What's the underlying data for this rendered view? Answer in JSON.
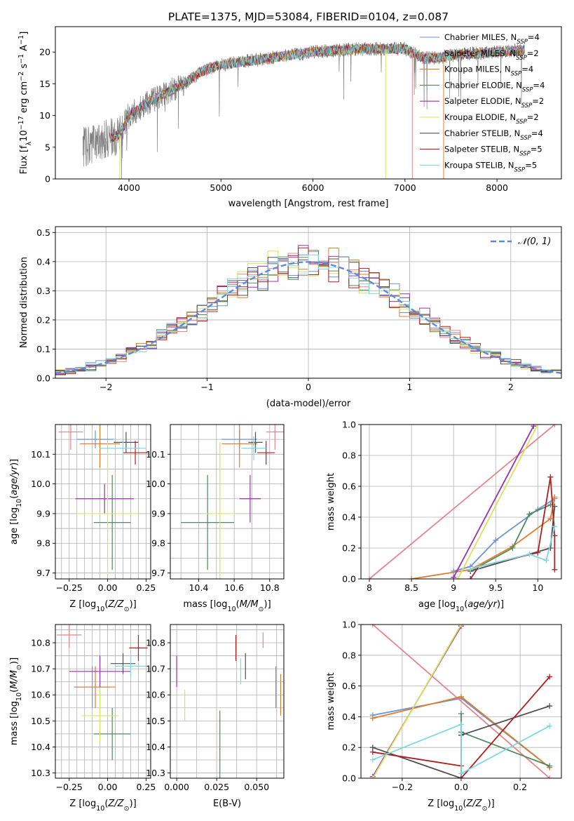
{
  "figure": {
    "title": "PLATE=1375, MJD=53084, FIBERID=0104, z=0.087"
  },
  "models": [
    {
      "name": "Chabrier MILES",
      "nssp": "4",
      "color": "#6a93d8"
    },
    {
      "name": "Salpeter MILES",
      "nssp": "2",
      "color": "#e8838b"
    },
    {
      "name": "Kroupa MILES",
      "nssp": "4",
      "color": "#e17c2a"
    },
    {
      "name": "Chabrier ELODIE",
      "nssp": "4",
      "color": "#4f8a5e"
    },
    {
      "name": "Salpeter ELODIE",
      "nssp": "2",
      "color": "#9c2fb0"
    },
    {
      "name": "Kroupa ELODIE",
      "nssp": "2",
      "color": "#d4e55a"
    },
    {
      "name": "Chabrier STELIB",
      "nssp": "4",
      "color": "#505050"
    },
    {
      "name": "Salpeter STELIB",
      "nssp": "5",
      "color": "#b01e22"
    },
    {
      "name": "Kroupa STELIB",
      "nssp": "5",
      "color": "#7fd8e0"
    }
  ],
  "chart_data": [
    {
      "id": "spectrum",
      "type": "line",
      "xlabel": "wavelength [Angstrom, rest frame]",
      "ylabel": "Flux [f_λ10^-17 erg cm^-2 s^-1 A^-1]",
      "xlim": [
        3200,
        8700
      ],
      "ylim": [
        0,
        24
      ],
      "xticks": [
        4000,
        5000,
        6000,
        7000,
        8000
      ],
      "yticks": [
        0,
        5,
        10,
        15,
        20
      ],
      "data_color": "#808080",
      "data_x_range": [
        3500,
        8300
      ],
      "model_x_range": [
        3800,
        8300
      ],
      "continuum": [
        [
          3500,
          5
        ],
        [
          3700,
          6
        ],
        [
          3900,
          7
        ],
        [
          4000,
          10
        ],
        [
          4200,
          12
        ],
        [
          4400,
          13.5
        ],
        [
          4600,
          15
        ],
        [
          4800,
          17
        ],
        [
          5000,
          18
        ],
        [
          5500,
          19
        ],
        [
          6000,
          20
        ],
        [
          6500,
          20.5
        ],
        [
          7000,
          20.5
        ],
        [
          7200,
          19
        ],
        [
          7400,
          19.2
        ],
        [
          7600,
          19.6
        ],
        [
          8000,
          20
        ],
        [
          8300,
          20.3
        ]
      ],
      "legend_position": "upper right",
      "grid": false
    },
    {
      "id": "residuals",
      "type": "histogram",
      "xlabel": "(data-model)/error",
      "ylabel": "Normed distribution",
      "xlim": [
        -2.5,
        2.5
      ],
      "ylim": [
        0,
        0.52
      ],
      "xticks": [
        -2,
        -1,
        0,
        1,
        2
      ],
      "yticks": [
        0,
        0.1,
        0.2,
        0.3,
        0.4,
        0.5
      ],
      "reference_curve": "N(0,1)",
      "reference_label": "𝒩(0, 1)",
      "reference_color": "#5b8bd8",
      "legend_position": "upper right",
      "bin_width": 0.1,
      "grid": true
    },
    {
      "id": "age-vs-metallicity",
      "type": "errorbar",
      "xlabel": "Z [log10(Z/Z⊙)]",
      "ylabel": "age [log10(age/yr)]",
      "xlim": [
        -0.34,
        0.28
      ],
      "ylim": [
        9.68,
        10.2
      ],
      "xticks": [
        -0.25,
        0,
        0.25
      ],
      "xtick_labels": [
        "−0.25",
        "0.00",
        "0.25"
      ],
      "yticks": [
        9.7,
        9.8,
        9.9,
        10.0,
        10.1
      ],
      "xtick_step": 0.05,
      "ytick_step": 0.05,
      "grid": true,
      "points": [
        {
          "model": 0,
          "x": -0.08,
          "y": 10.15,
          "xerr": 0.12,
          "yerr": 0.03
        },
        {
          "model": 1,
          "x": -0.24,
          "y": 10.175,
          "xerr": 0.08,
          "yerr": 0.06
        },
        {
          "model": 2,
          "x": -0.05,
          "y": 10.135,
          "xerr": 0.13,
          "yerr": 0.08
        },
        {
          "model": 3,
          "x": 0.03,
          "y": 9.87,
          "xerr": 0.12,
          "yerr": 0.16
        },
        {
          "model": 4,
          "x": -0.02,
          "y": 9.95,
          "xerr": 0.19,
          "yerr": 0.05
        },
        {
          "model": 5,
          "x": 0.0,
          "y": 9.9,
          "xerr": 0.2,
          "yerr": 0.24
        },
        {
          "model": 6,
          "x": 0.12,
          "y": 10.14,
          "xerr": 0.08,
          "yerr": 0.035
        },
        {
          "model": 7,
          "x": 0.18,
          "y": 10.105,
          "xerr": 0.08,
          "yerr": 0.04
        },
        {
          "model": 8,
          "x": 0.1,
          "y": 10.12,
          "xerr": 0.15,
          "yerr": 0.04
        }
      ]
    },
    {
      "id": "age-vs-mass",
      "type": "errorbar",
      "xlabel": "mass [log10(M/M⊙)]",
      "ylabel": "",
      "xlim": [
        10.24,
        10.88
      ],
      "ylim": [
        9.68,
        10.2
      ],
      "xticks": [
        10.4,
        10.6,
        10.8
      ],
      "yticks": [
        9.7,
        9.8,
        9.9,
        10.0,
        10.1
      ],
      "xtick_step": 0.1,
      "ytick_step": 0.05,
      "grid": true,
      "points": [
        {
          "model": 0,
          "x": 10.63,
          "y": 10.15,
          "xerr": 0.1,
          "yerr": 0.03
        },
        {
          "model": 1,
          "x": 10.83,
          "y": 10.175,
          "xerr": 0.05,
          "yerr": 0.06
        },
        {
          "model": 2,
          "x": 10.63,
          "y": 10.135,
          "xerr": 0.1,
          "yerr": 0.08
        },
        {
          "model": 3,
          "x": 10.45,
          "y": 9.87,
          "xerr": 0.15,
          "yerr": 0.16
        },
        {
          "model": 4,
          "x": 10.69,
          "y": 9.95,
          "xerr": 0.06,
          "yerr": 0.08
        },
        {
          "model": 5,
          "x": 10.52,
          "y": 9.9,
          "xerr": 0.09,
          "yerr": 0.24
        },
        {
          "model": 6,
          "x": 10.72,
          "y": 10.14,
          "xerr": 0.04,
          "yerr": 0.035
        },
        {
          "model": 7,
          "x": 10.78,
          "y": 10.105,
          "xerr": 0.05,
          "yerr": 0.04
        },
        {
          "model": 8,
          "x": 10.71,
          "y": 10.12,
          "xerr": 0.07,
          "yerr": 0.04
        }
      ]
    },
    {
      "id": "mass-weight-vs-age",
      "type": "line",
      "xlabel": "age [log10(age/yr)]",
      "ylabel": "mass weight",
      "xlim": [
        7.9,
        10.28
      ],
      "ylim": [
        0,
        1.0
      ],
      "xticks": [
        8.0,
        8.5,
        9.0,
        9.5,
        10.0
      ],
      "yticks": [
        0,
        0.2,
        0.4,
        0.6,
        0.8,
        1.0
      ],
      "grid": true,
      "series": [
        {
          "model": 0,
          "x": [
            9.0,
            9.2,
            9.5,
            10.0,
            10.2
          ],
          "y": [
            0.05,
            0.08,
            0.25,
            0.45,
            0.52
          ]
        },
        {
          "model": 1,
          "x": [
            8.0,
            10.2
          ],
          "y": [
            0.0,
            1.0
          ]
        },
        {
          "model": 2,
          "x": [
            8.5,
            9.2,
            9.7,
            10.15,
            10.2
          ],
          "y": [
            0.0,
            0.06,
            0.21,
            0.39,
            0.53
          ]
        },
        {
          "model": 3,
          "x": [
            9.2,
            9.7,
            9.9,
            10.15
          ],
          "y": [
            0.05,
            0.2,
            0.42,
            0.48
          ]
        },
        {
          "model": 4,
          "x": [
            9.0,
            9.95
          ],
          "y": [
            0.01,
            0.99
          ]
        },
        {
          "model": 5,
          "x": [
            9.05,
            10.0
          ],
          "y": [
            0.0,
            1.0
          ]
        },
        {
          "model": 6,
          "x": [
            9.2,
            10.15,
            10.2
          ],
          "y": [
            0.05,
            0.2,
            0.47
          ]
        },
        {
          "model": 7,
          "x": [
            9.2,
            9.3,
            10.0,
            10.15,
            10.2,
            10.2
          ],
          "y": [
            0.0,
            0.08,
            0.17,
            0.66,
            0.28,
            0.06
          ]
        },
        {
          "model": 8,
          "x": [
            9.2,
            9.3,
            9.9,
            10.1,
            10.2
          ],
          "y": [
            0.06,
            0.08,
            0.16,
            0.12,
            0.34
          ]
        }
      ]
    },
    {
      "id": "mass-vs-metallicity",
      "type": "errorbar",
      "xlabel": "Z [log10(Z/Z⊙)]",
      "ylabel": "mass [log10(M/M⊙)]",
      "xlim": [
        -0.34,
        0.28
      ],
      "ylim": [
        10.28,
        10.87
      ],
      "xticks": [
        -0.25,
        0,
        0.25
      ],
      "xtick_labels": [
        "−0.25",
        "0.00",
        "0.25"
      ],
      "yticks": [
        10.3,
        10.4,
        10.5,
        10.6,
        10.7,
        10.8
      ],
      "xtick_step": 0.05,
      "ytick_step": 0.05,
      "grid": true,
      "points": [
        {
          "model": 0,
          "x": -0.1,
          "y": 10.63,
          "xerr": 0.12,
          "yerr": 0.08
        },
        {
          "model": 1,
          "x": -0.25,
          "y": 10.83,
          "xerr": 0.08,
          "yerr": 0.05
        },
        {
          "model": 2,
          "x": -0.08,
          "y": 10.63,
          "xerr": 0.13,
          "yerr": 0.08
        },
        {
          "model": 3,
          "x": 0.03,
          "y": 10.45,
          "xerr": 0.12,
          "yerr": 0.1
        },
        {
          "model": 4,
          "x": -0.05,
          "y": 10.69,
          "xerr": 0.2,
          "yerr": 0.06
        },
        {
          "model": 5,
          "x": -0.05,
          "y": 10.52,
          "xerr": 0.12,
          "yerr": 0.1
        },
        {
          "model": 6,
          "x": 0.1,
          "y": 10.72,
          "xerr": 0.08,
          "yerr": 0.04
        },
        {
          "model": 7,
          "x": 0.2,
          "y": 10.78,
          "xerr": 0.06,
          "yerr": 0.05
        },
        {
          "model": 8,
          "x": 0.15,
          "y": 10.71,
          "xerr": 0.1,
          "yerr": 0.04
        }
      ]
    },
    {
      "id": "mass-vs-ebv",
      "type": "errorbar",
      "xlabel": "E(B-V)",
      "ylabel": "",
      "xlim": [
        -0.004,
        0.067
      ],
      "ylim": [
        10.28,
        10.87
      ],
      "xticks": [
        0.0,
        0.025,
        0.05
      ],
      "xtick_labels": [
        "0.000",
        "0.025",
        "0.050"
      ],
      "yticks": [
        10.3,
        10.4,
        10.5,
        10.6,
        10.7,
        10.8
      ],
      "xtick_step": 0.0125,
      "ytick_step": 0.05,
      "grid": true,
      "points": [
        {
          "model": 0,
          "x": 0.062,
          "y": 10.63,
          "xerr": 0,
          "yerr": 0.08
        },
        {
          "model": 1,
          "x": 0.054,
          "y": 10.81,
          "xerr": 0,
          "yerr": 0.03
        },
        {
          "model": 2,
          "x": 0.065,
          "y": 10.6,
          "xerr": 0,
          "yerr": 0.08
        },
        {
          "model": 3,
          "x": 0.027,
          "y": 10.4,
          "xerr": 0,
          "yerr": 0.14
        },
        {
          "model": 4,
          "x": 0.0,
          "y": 10.69,
          "xerr": 0,
          "yerr": 0.06
        },
        {
          "model": 5,
          "x": 0.005,
          "y": 10.56,
          "xerr": 0,
          "yerr": 0.06
        },
        {
          "model": 6,
          "x": 0.043,
          "y": 10.71,
          "xerr": 0,
          "yerr": 0.05
        },
        {
          "model": 7,
          "x": 0.037,
          "y": 10.78,
          "xerr": 0,
          "yerr": 0.05
        },
        {
          "model": 8,
          "x": 0.04,
          "y": 10.69,
          "xerr": 0,
          "yerr": 0.05
        }
      ]
    },
    {
      "id": "mass-weight-vs-metallicity",
      "type": "line",
      "xlabel": "Z [log10(Z/Z⊙)]",
      "ylabel": "mass weight",
      "xlim": [
        -0.34,
        0.34
      ],
      "ylim": [
        0,
        1.0
      ],
      "xticks": [
        -0.2,
        0.0,
        0.2
      ],
      "xtick_labels": [
        "−0.2",
        "0.0",
        "0.2"
      ],
      "yticks": [
        0,
        0.2,
        0.4,
        0.6,
        0.8,
        1.0
      ],
      "grid": true,
      "series": [
        {
          "model": 0,
          "x": [
            -0.3,
            0.0,
            0.3
          ],
          "y": [
            0.41,
            0.52,
            0.07
          ]
        },
        {
          "model": 1,
          "x": [
            -0.3,
            0.3
          ],
          "y": [
            1.0,
            0.0
          ]
        },
        {
          "model": 2,
          "x": [
            -0.3,
            0.0,
            0.3
          ],
          "y": [
            0.39,
            0.53,
            0.07
          ]
        },
        {
          "model": 3,
          "x": [
            0.0,
            0.0,
            0.3
          ],
          "y": [
            0.42,
            0.3,
            0.08
          ]
        },
        {
          "model": 4,
          "x": [
            -0.3,
            0.0
          ],
          "y": [
            0.01,
            0.99
          ]
        },
        {
          "model": 5,
          "x": [
            -0.3,
            0.0
          ],
          "y": [
            0.0,
            1.0
          ]
        },
        {
          "model": 6,
          "x": [
            -0.3,
            0.0,
            0.0,
            0.3
          ],
          "y": [
            0.2,
            0.0,
            0.28,
            0.47
          ]
        },
        {
          "model": 7,
          "x": [
            -0.3,
            0.0,
            0.0,
            0.3
          ],
          "y": [
            0.17,
            0.08,
            0.0,
            0.66
          ]
        },
        {
          "model": 8,
          "x": [
            -0.3,
            0.0,
            0.0,
            0.3
          ],
          "y": [
            0.12,
            0.35,
            0.03,
            0.34
          ]
        }
      ]
    }
  ]
}
